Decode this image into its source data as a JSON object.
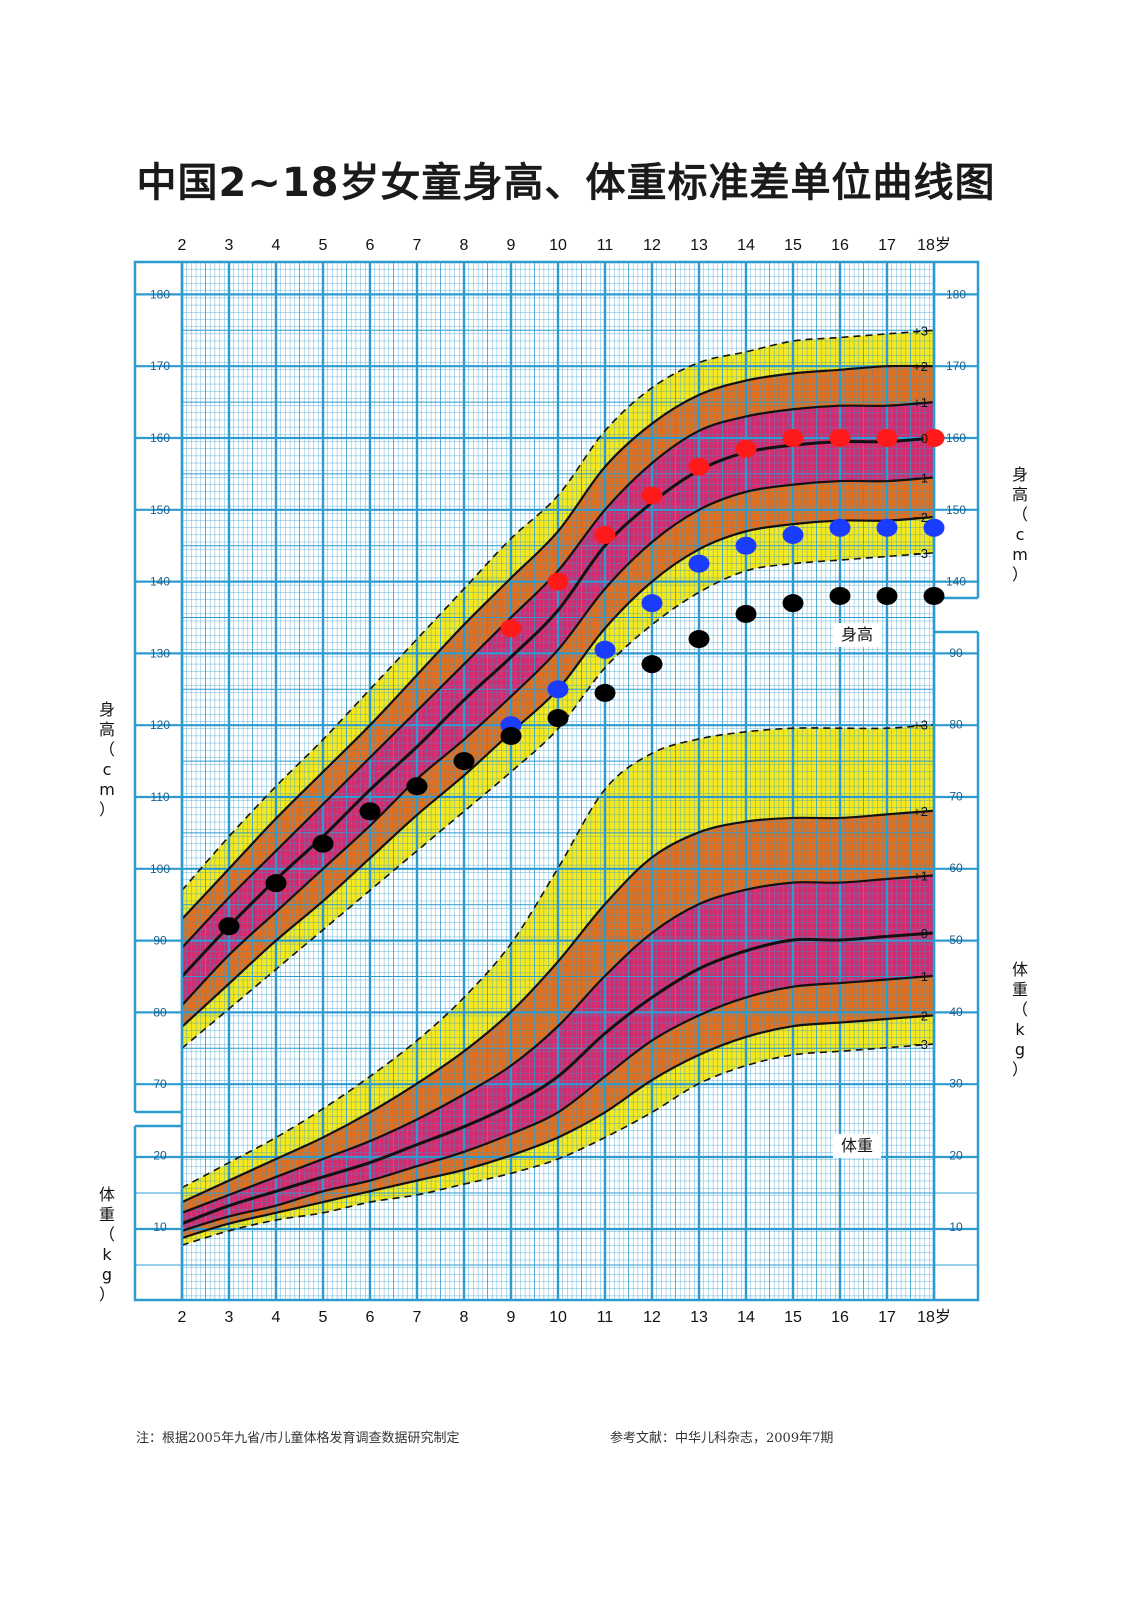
{
  "title": "中国2~18岁女童身高、体重标准差单位曲线图",
  "footer": {
    "note": "注：根据2005年九省/市儿童体格发育调查数据研究制定",
    "reference": "参考文献：中华儿科杂志，2009年7期"
  },
  "labels": {
    "height_axis_left": "身高（cm）",
    "height_axis_right": "身高（cm）",
    "weight_axis_left": "体重（kg）",
    "weight_axis_right": "体重（kg）",
    "height_chart_label": "身高",
    "weight_chart_label": "体重",
    "age_suffix": "岁"
  },
  "colors": {
    "band_outer": "#f5e81e",
    "band_middle": "#e07020",
    "band_inner": "#d42a6e",
    "grid": "#2e9bd0",
    "dot_red": "#ff1a1a",
    "dot_blue": "#1a3cff",
    "dot_black": "#000000"
  },
  "chart_data": {
    "type": "line",
    "x_label": "",
    "x_ticks": [
      2,
      3,
      4,
      5,
      6,
      7,
      8,
      9,
      10,
      11,
      12,
      13,
      14,
      15,
      16,
      17,
      18
    ],
    "height_axis": {
      "unit": "cm",
      "ylim": [
        66,
        186
      ],
      "ticks": [
        70,
        80,
        90,
        100,
        110,
        120,
        130,
        140,
        150,
        160,
        170,
        180
      ]
    },
    "weight_axis": {
      "unit": "kg",
      "left_ticks": [
        10,
        20
      ],
      "right_ticks": [
        10,
        20,
        30,
        40,
        50,
        60,
        70,
        80,
        90
      ],
      "ylim_left": [
        0,
        27
      ]
    },
    "sd_labels": [
      "+3",
      "+2",
      "+1",
      "0",
      "−1",
      "−2",
      "−3"
    ],
    "height_sd": {
      "x": [
        2,
        3,
        4,
        5,
        6,
        7,
        8,
        9,
        10,
        11,
        12,
        13,
        14,
        15,
        16,
        17,
        18
      ],
      "p3": [
        97,
        104.5,
        111.5,
        118,
        125,
        132,
        139,
        146,
        152,
        161,
        167,
        170.5,
        172,
        173.5,
        174,
        174.5,
        175
      ],
      "p2": [
        93,
        100,
        107,
        113.5,
        120,
        127,
        134,
        140.5,
        147,
        156,
        162,
        166,
        168,
        169,
        169.5,
        170,
        170
      ],
      "p1": [
        89,
        96,
        102.5,
        109,
        115.5,
        122,
        128.5,
        135,
        141.5,
        150,
        156.5,
        161,
        163,
        164,
        164.5,
        164.5,
        165
      ],
      "p0": [
        85,
        92,
        98.5,
        104.5,
        111,
        117,
        123.5,
        129.5,
        136,
        145,
        151,
        155.5,
        158,
        159,
        159.5,
        159.5,
        160
      ],
      "m1": [
        81,
        88,
        94,
        100,
        106,
        112.5,
        118,
        124,
        130.5,
        139,
        145.5,
        150,
        152.5,
        153.5,
        154,
        154,
        154.5
      ],
      "m2": [
        78,
        84,
        90,
        95.5,
        101.5,
        107.5,
        113,
        119,
        125,
        133.5,
        140,
        144.5,
        147,
        148,
        148.5,
        148.5,
        149
      ],
      "m3": [
        75,
        80.5,
        86,
        91.5,
        97,
        102.5,
        108,
        113.5,
        119.5,
        128,
        134,
        138.5,
        141.5,
        142.5,
        143,
        143.5,
        144
      ]
    },
    "weight_sd": {
      "x": [
        2,
        3,
        4,
        5,
        6,
        7,
        8,
        9,
        10,
        11,
        12,
        13,
        14,
        15,
        16,
        17,
        18
      ],
      "p3": [
        15.5,
        19,
        22.5,
        26.5,
        31,
        36,
        42,
        49.5,
        60,
        71,
        76,
        78,
        79,
        79.5,
        79.5,
        79.5,
        80
      ],
      "p2": [
        13.5,
        16.5,
        19.5,
        22.5,
        26,
        30,
        34.5,
        40,
        47,
        55,
        61.5,
        65,
        66.5,
        67,
        67,
        67.5,
        68
      ],
      "p1": [
        12,
        14.5,
        17,
        19.5,
        22,
        25,
        28.5,
        32.5,
        38,
        45,
        51,
        55,
        57,
        58,
        58,
        58.5,
        59
      ],
      "p0": [
        10.5,
        13,
        15,
        17,
        19,
        21.5,
        24,
        27,
        31,
        37,
        42,
        46,
        48.5,
        50,
        50,
        50.5,
        51
      ],
      "m1": [
        9.5,
        11.5,
        13,
        15,
        16.5,
        18.5,
        20.5,
        23,
        26,
        31,
        36,
        39.5,
        42,
        43.5,
        44,
        44.5,
        45
      ],
      "m2": [
        8.5,
        10.5,
        12,
        13.5,
        15,
        16.5,
        18,
        20,
        22.5,
        26,
        30.5,
        34,
        36.5,
        38,
        38.5,
        39,
        39.5
      ],
      "m3": [
        7.5,
        9.5,
        11,
        12,
        13.5,
        14.5,
        16,
        17.5,
        19.5,
        22.5,
        26,
        30,
        32.5,
        34,
        34.5,
        35,
        35.5
      ]
    },
    "series": [
      {
        "name": "",
        "color": "red",
        "x": [
          9,
          10,
          11,
          12,
          13,
          14,
          15,
          16,
          17,
          18
        ],
        "y": [
          133.5,
          140,
          146.5,
          152,
          156,
          158.5,
          160,
          160,
          160,
          160
        ]
      },
      {
        "name": "",
        "color": "blue",
        "x": [
          9,
          10,
          11,
          12,
          13,
          14,
          15,
          16,
          17,
          18
        ],
        "y": [
          120,
          125,
          130.5,
          137,
          142.5,
          145,
          146.5,
          147.5,
          147.5,
          147.5
        ]
      },
      {
        "name": "",
        "color": "black",
        "x": [
          3,
          4,
          5,
          6,
          7,
          8,
          9,
          10,
          11,
          12,
          13,
          14,
          15,
          16,
          17,
          18
        ],
        "y": [
          92,
          98,
          103.5,
          108,
          111.5,
          115,
          118.5,
          121,
          124.5,
          128.5,
          132,
          135.5,
          137,
          138,
          138,
          138
        ]
      }
    ]
  }
}
